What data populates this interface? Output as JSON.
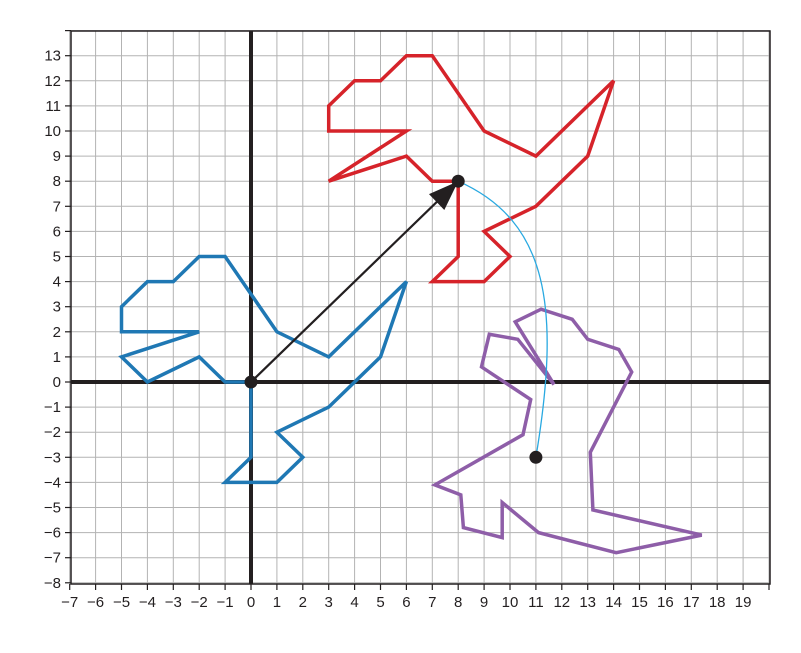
{
  "grid": {
    "x_range": [
      -7,
      20
    ],
    "y_range": [
      -8,
      14
    ],
    "x_tick_labels": [
      "−7",
      "−6",
      "−5",
      "−4",
      "−3",
      "−2",
      "−1",
      "0",
      "1",
      "2",
      "3",
      "4",
      "5",
      "6",
      "7",
      "8",
      "9",
      "10",
      "11",
      "12",
      "13",
      "14",
      "15",
      "16",
      "17",
      "18",
      "19"
    ],
    "y_tick_labels": [
      "13",
      "12",
      "11",
      "10",
      "9",
      "8",
      "7",
      "6",
      "5",
      "4",
      "3",
      "2",
      "1",
      "0",
      "−1",
      "−2",
      "−3",
      "−4",
      "−5",
      "−6",
      "−7",
      "−8"
    ],
    "grid_color": "#b3b3b3",
    "axis_color": "#231f20"
  },
  "shapes": [
    {
      "name": "blue-dinosaur",
      "color": "#1f78b4",
      "points": [
        [
          0,
          0
        ],
        [
          -1,
          0
        ],
        [
          -2,
          1
        ],
        [
          -4,
          0
        ],
        [
          -5,
          1
        ],
        [
          -2,
          2
        ],
        [
          -5,
          2
        ],
        [
          -5,
          3
        ],
        [
          -4,
          4
        ],
        [
          -3,
          4
        ],
        [
          -2,
          5
        ],
        [
          -1,
          5
        ],
        [
          1,
          2
        ],
        [
          3,
          1
        ],
        [
          6,
          4
        ],
        [
          5,
          1
        ],
        [
          4,
          0
        ],
        [
          3,
          -1
        ],
        [
          1,
          -2
        ],
        [
          2,
          -3
        ],
        [
          1,
          -4
        ],
        [
          -1,
          -4
        ],
        [
          0,
          -3
        ],
        [
          0,
          0
        ]
      ]
    },
    {
      "name": "red-dinosaur",
      "color": "#d6232a",
      "points": [
        [
          8,
          8
        ],
        [
          7,
          8
        ],
        [
          6,
          9
        ],
        [
          3,
          8
        ],
        [
          6,
          10
        ],
        [
          3,
          10
        ],
        [
          3,
          11
        ],
        [
          4,
          12
        ],
        [
          5,
          12
        ],
        [
          6,
          13
        ],
        [
          7,
          13
        ],
        [
          9,
          10
        ],
        [
          11,
          9
        ],
        [
          14,
          12
        ],
        [
          13,
          9
        ],
        [
          11,
          7
        ],
        [
          9,
          6
        ],
        [
          10,
          5
        ],
        [
          9,
          4
        ],
        [
          7,
          4
        ],
        [
          8,
          5
        ],
        [
          8,
          8
        ]
      ]
    },
    {
      "name": "purple-dinosaur",
      "color": "#8e5ea8",
      "points": [
        [
          11.7,
          -0.1
        ],
        [
          10.3,
          1.7
        ],
        [
          9.2,
          1.9
        ],
        [
          8.9,
          0.6
        ],
        [
          10.8,
          -0.7
        ],
        [
          10.5,
          -2.1
        ],
        [
          7.1,
          -4.1
        ],
        [
          8.1,
          -4.5
        ],
        [
          8.2,
          -5.8
        ],
        [
          9.7,
          -6.2
        ],
        [
          9.7,
          -4.8
        ],
        [
          11.1,
          -6.0
        ],
        [
          14.1,
          -6.8
        ],
        [
          17.4,
          -6.1
        ],
        [
          13.2,
          -5.1
        ],
        [
          13.1,
          -2.8
        ],
        [
          14.7,
          0.4
        ],
        [
          14.2,
          1.3
        ],
        [
          13.0,
          1.7
        ],
        [
          12.4,
          2.5
        ],
        [
          11.2,
          2.9
        ],
        [
          10.2,
          2.4
        ],
        [
          11.7,
          -0.1
        ]
      ]
    }
  ],
  "vector_arrow": {
    "from": [
      0,
      0
    ],
    "to": [
      8,
      8
    ],
    "color": "#231f20"
  },
  "rotation_arc": {
    "from": [
      8,
      8
    ],
    "to": [
      11,
      -3
    ],
    "color": "#29a9e1"
  },
  "marked_points": [
    [
      0,
      0
    ],
    [
      8,
      8
    ],
    [
      11,
      -3
    ]
  ]
}
